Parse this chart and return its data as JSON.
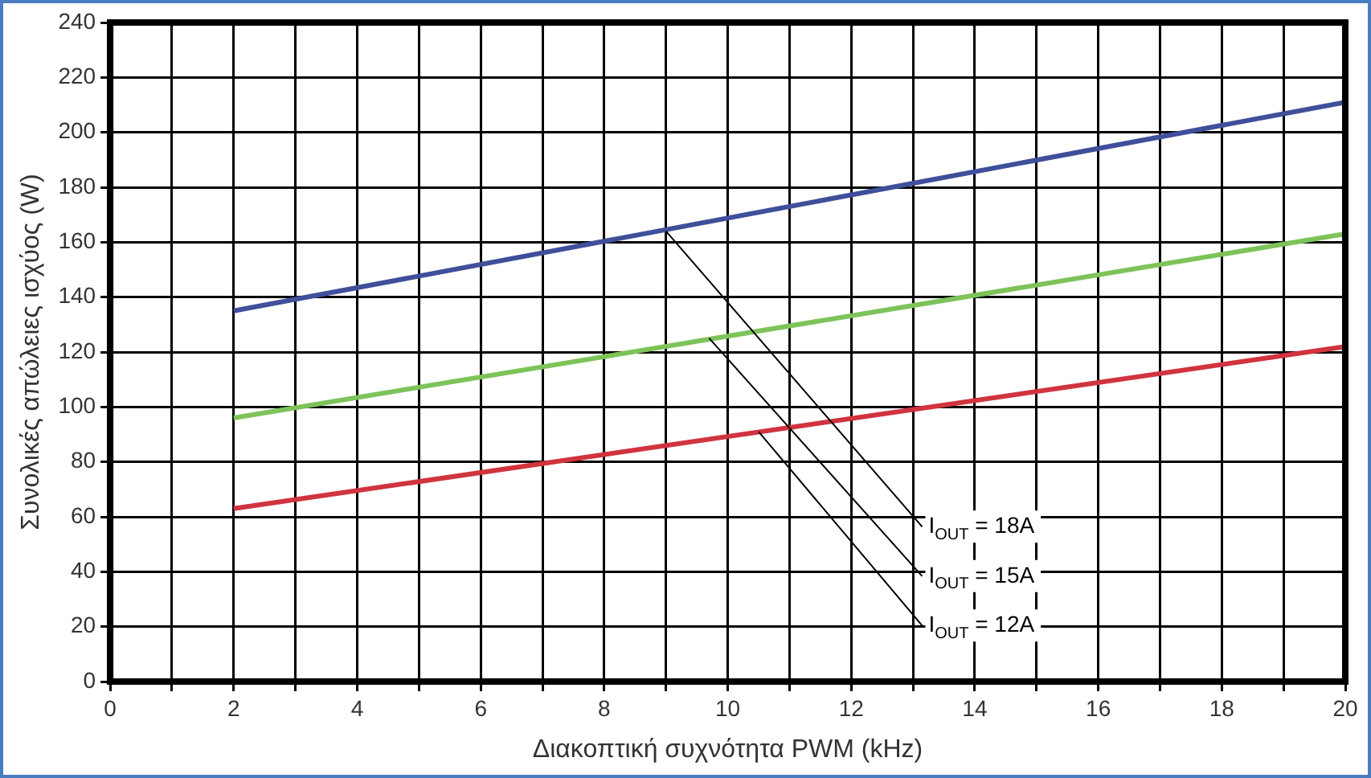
{
  "chart_data": {
    "type": "line",
    "xlabel": "Διακοπτική συχνότητα PWM (kHz)",
    "ylabel": "Συνολικές απώλειες ισχύος (W)",
    "xlim": [
      0,
      20
    ],
    "xticks": [
      0,
      {
        "value": 1,
        "label": null
      },
      2,
      {
        "value": 3,
        "label": null
      },
      4,
      {
        "value": 5,
        "label": null
      },
      6,
      {
        "value": 7,
        "label": null
      },
      8,
      {
        "value": 9,
        "label": null
      },
      10,
      {
        "value": 11,
        "label": null
      },
      12,
      {
        "value": 13,
        "label": null
      },
      14,
      {
        "value": 15,
        "label": null
      },
      16,
      {
        "value": 17,
        "label": null
      },
      18,
      {
        "value": 19,
        "label": null
      },
      20
    ],
    "ylim": [
      0,
      240
    ],
    "yticks": [
      0,
      20,
      40,
      60,
      80,
      100,
      120,
      140,
      160,
      180,
      200,
      220,
      240
    ],
    "grid": true,
    "legend": false,
    "marker": "none",
    "line_style": "solid",
    "x": [
      2,
      20
    ],
    "series": [
      {
        "color": "#3f4f9a",
        "values": [
          135,
          211
        ]
      },
      {
        "color": "#7dc35a",
        "values": [
          96,
          163
        ]
      },
      {
        "color": "#d0343f",
        "values": [
          63,
          122
        ]
      }
    ],
    "annotations": [
      {
        "text": "I$_{OUT}$ = 18A",
        "x": 9,
        "y": 164
      },
      {
        "text": "I$_{OUT}$ = 15A",
        "x": 9.7,
        "y": 125
      },
      {
        "text": "I$_{OUT}$ = 12A",
        "x": 10.5,
        "y": 91
      }
    ]
  }
}
